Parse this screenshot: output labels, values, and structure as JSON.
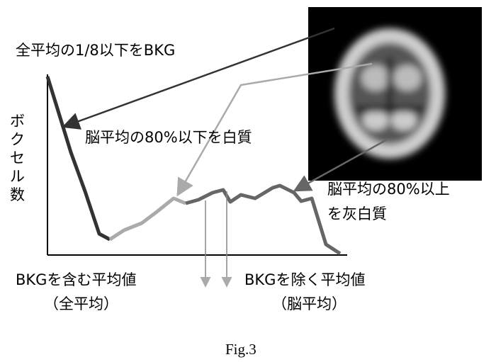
{
  "labels": {
    "bkg_rule": "全平均の1/8以下をBKG",
    "y_axis": [
      "ボ",
      "ク",
      "セ",
      "ル",
      "数"
    ],
    "white_matter": "脳平均の80%以下を白質",
    "gray_matter": [
      "脳平均の80%以上",
      "を灰白質"
    ],
    "mean_with_bkg": [
      "BKGを含む平均値",
      "（全平均）"
    ],
    "mean_without_bkg": [
      "BKGを除く平均値",
      "（脳平均）"
    ],
    "caption": "Fig.3"
  }
}
